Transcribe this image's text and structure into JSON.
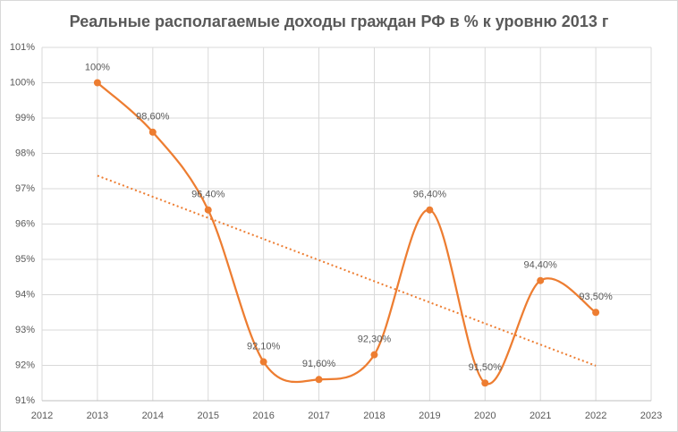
{
  "chart_data": {
    "type": "line",
    "title": "Реальные располагаемые доходы граждан РФ в % к уровню 2013 г",
    "x": [
      2013,
      2014,
      2015,
      2016,
      2017,
      2018,
      2019,
      2020,
      2021,
      2022
    ],
    "series": [
      {
        "color": "#ed7d31",
        "values": [
          100,
          98.6,
          96.4,
          92.1,
          91.6,
          92.3,
          96.4,
          91.5,
          94.4,
          93.5
        ],
        "value_labels": [
          "100%",
          "98,60%",
          "96,40%",
          "92,10%",
          "91,60%",
          "92,30%",
          "96,40%",
          "91,50%",
          "94,40%",
          "93,50%"
        ]
      }
    ],
    "trendline": {
      "x": [
        2013,
        2022
      ],
      "values": [
        97.37,
        91.99
      ],
      "color": "#ed7d31"
    },
    "xlim": [
      2012,
      2023
    ],
    "xticks": [
      2012,
      2013,
      2014,
      2015,
      2016,
      2017,
      2018,
      2019,
      2020,
      2021,
      2022,
      2023
    ],
    "ylim": [
      91,
      101
    ],
    "yticks": [
      {
        "value": 91,
        "label": "91%"
      },
      {
        "value": 92,
        "label": "92%"
      },
      {
        "value": 93,
        "label": "93%"
      },
      {
        "value": 94,
        "label": "94%"
      },
      {
        "value": 95,
        "label": "95%"
      },
      {
        "value": 96,
        "label": "96%"
      },
      {
        "value": 97,
        "label": "97%"
      },
      {
        "value": 98,
        "label": "98%"
      },
      {
        "value": 99,
        "label": "99%"
      },
      {
        "value": 100,
        "label": "100%"
      },
      {
        "value": 101,
        "label": "101%"
      }
    ],
    "grid": true,
    "smooth": true
  }
}
